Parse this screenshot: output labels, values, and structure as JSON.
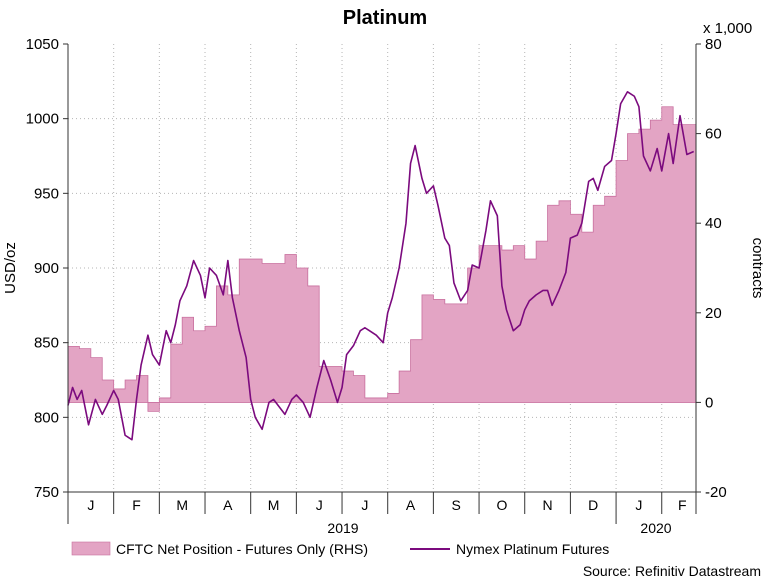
{
  "chart_data": {
    "type": "area+line",
    "title": "Platinum",
    "source": "Source: Refinitiv Datastream",
    "y_left": {
      "label": "USD/oz",
      "range": [
        750,
        1050
      ],
      "ticks": [
        "1050",
        "1000",
        "950",
        "900",
        "850",
        "800",
        "750"
      ]
    },
    "y_right": {
      "label": "contracts",
      "multiplier": "x 1,000",
      "range": [
        -20,
        80
      ],
      "ticks": [
        "80",
        "60",
        "40",
        "20",
        "0",
        "-20"
      ]
    },
    "x": {
      "months": [
        "J",
        "F",
        "M",
        "A",
        "M",
        "J",
        "J",
        "A",
        "S",
        "O",
        "N",
        "D",
        "J",
        "F"
      ],
      "years": [
        "2019",
        "2020"
      ],
      "range_months": [
        0,
        13.75
      ]
    },
    "legend": [
      {
        "name": "CFTC Net Position - Futures Only (RHS)",
        "color": "#e3a4c4"
      },
      {
        "name": "Nymex Platinum Futures",
        "color": "#7b0a7e"
      }
    ],
    "colors": {
      "area_fill": "#e3a4c4",
      "area_edge": "#c9709f",
      "line": "#7b0a7e"
    },
    "series": [
      {
        "name": "CFTC Net Position - Futures Only (RHS)",
        "axis": "right",
        "style": "step-area",
        "x": [
          0,
          0.25,
          0.5,
          0.75,
          1,
          1.25,
          1.5,
          1.75,
          2,
          2.25,
          2.5,
          2.75,
          3,
          3.25,
          3.5,
          3.75,
          4,
          4.25,
          4.5,
          4.75,
          5,
          5.25,
          5.5,
          5.75,
          6,
          6.25,
          6.5,
          6.75,
          7,
          7.25,
          7.5,
          7.75,
          8,
          8.25,
          8.5,
          8.75,
          9,
          9.25,
          9.5,
          9.75,
          10,
          10.25,
          10.5,
          10.75,
          11,
          11.25,
          11.5,
          11.75,
          12,
          12.25,
          12.5,
          12.75,
          13,
          13.25,
          13.5
        ],
        "values": [
          12.5,
          12,
          10,
          5,
          3,
          5,
          6,
          -2,
          1,
          13,
          19,
          16,
          17,
          26,
          24,
          32,
          32,
          31,
          31,
          33,
          30,
          26,
          8,
          8,
          7,
          6,
          1,
          1,
          2,
          7,
          14,
          24,
          23,
          22,
          22,
          30,
          35,
          35,
          34,
          35,
          32,
          36,
          44,
          45,
          42,
          38,
          44,
          46,
          54,
          60,
          61,
          63,
          66,
          62,
          62
        ]
      },
      {
        "name": "Nymex Platinum Futures",
        "axis": "left",
        "style": "line",
        "x": [
          0,
          0.1,
          0.2,
          0.3,
          0.45,
          0.6,
          0.75,
          0.85,
          1,
          1.1,
          1.25,
          1.4,
          1.5,
          1.6,
          1.75,
          1.85,
          2,
          2.15,
          2.25,
          2.35,
          2.45,
          2.6,
          2.75,
          2.9,
          3,
          3.1,
          3.25,
          3.4,
          3.5,
          3.6,
          3.75,
          3.9,
          4,
          4.1,
          4.25,
          4.4,
          4.5,
          4.6,
          4.75,
          4.9,
          5,
          5.15,
          5.3,
          5.45,
          5.6,
          5.75,
          5.9,
          6,
          6.1,
          6.25,
          6.4,
          6.5,
          6.6,
          6.75,
          6.9,
          7,
          7.1,
          7.25,
          7.4,
          7.5,
          7.6,
          7.75,
          7.85,
          8,
          8.1,
          8.25,
          8.35,
          8.45,
          8.6,
          8.75,
          8.85,
          9,
          9.15,
          9.25,
          9.4,
          9.5,
          9.6,
          9.75,
          9.9,
          10,
          10.1,
          10.25,
          10.4,
          10.5,
          10.6,
          10.75,
          10.9,
          11,
          11.15,
          11.25,
          11.4,
          11.5,
          11.6,
          11.75,
          11.9,
          12,
          12.1,
          12.25,
          12.4,
          12.5,
          12.6,
          12.75,
          12.9,
          13,
          13.15,
          13.25,
          13.4,
          13.55,
          13.7
        ],
        "values": [
          808,
          820,
          812,
          818,
          795,
          812,
          802,
          808,
          818,
          812,
          788,
          785,
          812,
          835,
          855,
          842,
          835,
          858,
          850,
          862,
          878,
          888,
          905,
          895,
          880,
          900,
          895,
          882,
          905,
          880,
          858,
          840,
          812,
          800,
          792,
          810,
          812,
          808,
          802,
          812,
          815,
          810,
          800,
          820,
          838,
          825,
          810,
          820,
          842,
          848,
          858,
          860,
          858,
          855,
          850,
          870,
          880,
          900,
          930,
          970,
          982,
          960,
          950,
          955,
          942,
          920,
          915,
          890,
          878,
          885,
          902,
          900,
          925,
          945,
          935,
          888,
          872,
          858,
          862,
          872,
          878,
          882,
          885,
          885,
          875,
          885,
          897,
          920,
          922,
          930,
          958,
          960,
          952,
          968,
          972,
          990,
          1010,
          1018,
          1015,
          1008,
          975,
          965,
          980,
          965,
          990,
          970,
          1002,
          976,
          978
        ]
      }
    ]
  }
}
